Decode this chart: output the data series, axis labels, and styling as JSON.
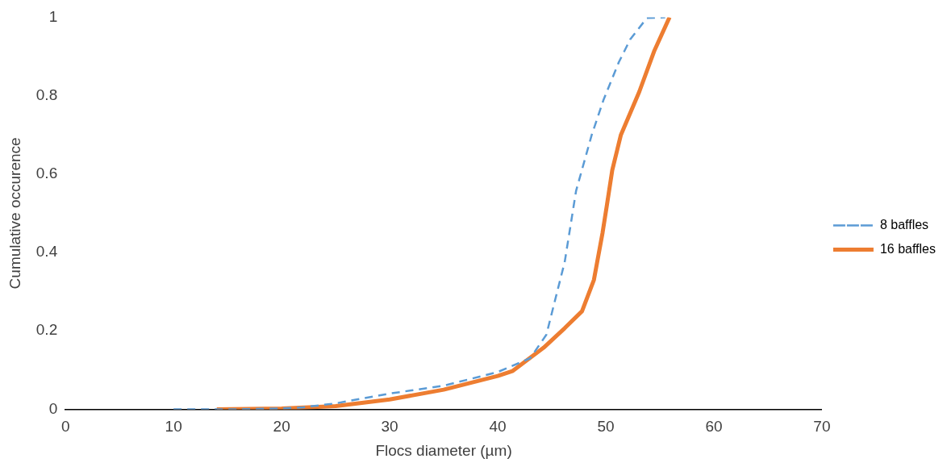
{
  "chart_data": {
    "type": "line",
    "xlabel": "Flocs diameter (µm)",
    "ylabel": "Cumulative occurence",
    "xlim": [
      0,
      70
    ],
    "xticks": [
      0,
      10,
      20,
      30,
      40,
      50,
      60,
      70
    ],
    "ylim": [
      0,
      1
    ],
    "yticks": [
      0,
      0.2,
      0.4,
      0.6,
      0.8,
      1
    ],
    "grid": false,
    "legend": "right",
    "marker": "none",
    "series": [
      {
        "name": "8 baffles",
        "color": "#5b9bd5",
        "line_style": "dashed",
        "x": [
          10,
          13,
          16,
          20,
          22,
          25,
          30,
          35,
          40,
          43,
          44.5,
          46.2,
          47.25,
          48.7,
          49.8,
          51.2,
          52.25,
          53.8,
          55.5
        ],
        "values": [
          0,
          0,
          0,
          0.002,
          0.005,
          0.015,
          0.04,
          0.06,
          0.095,
          0.13,
          0.19,
          0.376,
          0.557,
          0.7,
          0.79,
          0.885,
          0.943,
          0.998,
          1
        ]
      },
      {
        "name": "16 baffles",
        "color": "#ed7d31",
        "line_style": "solid",
        "x": [
          14,
          20,
          25,
          30,
          35,
          40,
          41.4,
          44.25,
          46.2,
          47.8,
          48.9,
          49.7,
          50.1,
          50.6,
          51.4,
          53.1,
          54.5,
          55.9
        ],
        "values": [
          0,
          0.002,
          0.008,
          0.025,
          0.05,
          0.085,
          0.098,
          0.157,
          0.207,
          0.25,
          0.33,
          0.45,
          0.52,
          0.61,
          0.7,
          0.81,
          0.915,
          1
        ]
      }
    ]
  }
}
